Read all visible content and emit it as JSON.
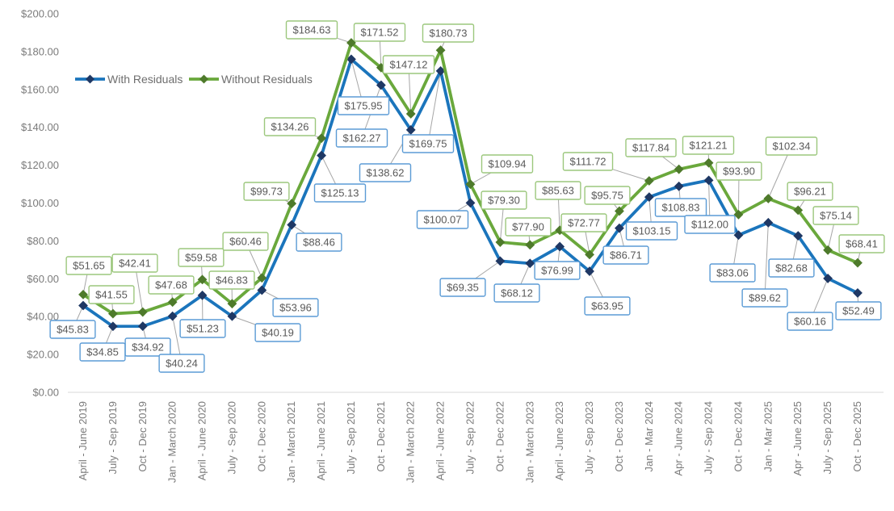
{
  "chart_data": {
    "type": "line",
    "title": "",
    "categories": [
      "April - June 2019",
      "July - Sep 2019",
      "Oct - Dec 2019",
      "Jan - March 2020",
      "April - June 2020",
      "July - Sep 2020",
      "Oct - Dec 2020",
      "Jan - March 2021",
      "April - June 2021",
      "July - Sep 2021",
      "Oct - Dec 2021",
      "Jan - March 2022",
      "April - June 2022",
      "July - Sep 2022",
      "Oct - Dec 2022",
      "Jan - March 2023",
      "April - June 2023",
      "July - Sep 2023",
      "Oct - Dec 2023",
      "Jan - Mar 2024",
      "Apr - June 2024",
      "July - Sep 2024",
      "Oct - Dec 2024",
      "Jan - Mar 2025",
      "Apr - June 2025",
      "July - Sep 2025",
      "Oct - Dec 2025"
    ],
    "series": [
      {
        "name": "With Residuals",
        "color": "#1B75BC",
        "marker_color": "#1F3864",
        "label_border_color": "#5B9BD5",
        "values": [
          45.83,
          34.85,
          34.92,
          40.24,
          51.23,
          40.19,
          53.96,
          88.46,
          125.13,
          175.95,
          162.27,
          138.62,
          169.75,
          100.07,
          69.35,
          68.12,
          76.99,
          63.95,
          86.71,
          103.15,
          108.83,
          112.0,
          83.06,
          89.62,
          82.68,
          60.16,
          52.49
        ]
      },
      {
        "name": "Without Residuals",
        "color": "#6AA83C",
        "marker_color": "#4E7A2B",
        "label_border_color": "#9CC77D",
        "values": [
          51.65,
          41.55,
          42.41,
          47.68,
          59.58,
          46.83,
          60.46,
          99.73,
          134.26,
          184.63,
          171.52,
          147.12,
          180.73,
          109.94,
          79.3,
          77.9,
          85.63,
          72.77,
          95.75,
          111.72,
          117.84,
          121.21,
          93.9,
          102.34,
          96.21,
          75.14,
          68.41
        ]
      }
    ],
    "y_axis": {
      "min": 0,
      "max": 200,
      "step": 20,
      "tick_labels": [
        "$0.00",
        "$20.00",
        "$40.00",
        "$60.00",
        "$80.00",
        "$100.00",
        "$120.00",
        "$140.00",
        "$160.00",
        "$180.00",
        "$200.00"
      ]
    },
    "legend": {
      "position": "top-left-inside",
      "entries": [
        "With Residuals",
        "Without Residuals"
      ]
    },
    "grid": false,
    "data_labels": true,
    "value_prefix": "$",
    "label_text_color": "#595959",
    "axis_text_color": "#7B7B7B",
    "legend_text_color": "#6E6E6E",
    "leader_line_color": "#A6A6A6",
    "axis_line_color": "#D9D9D9"
  }
}
